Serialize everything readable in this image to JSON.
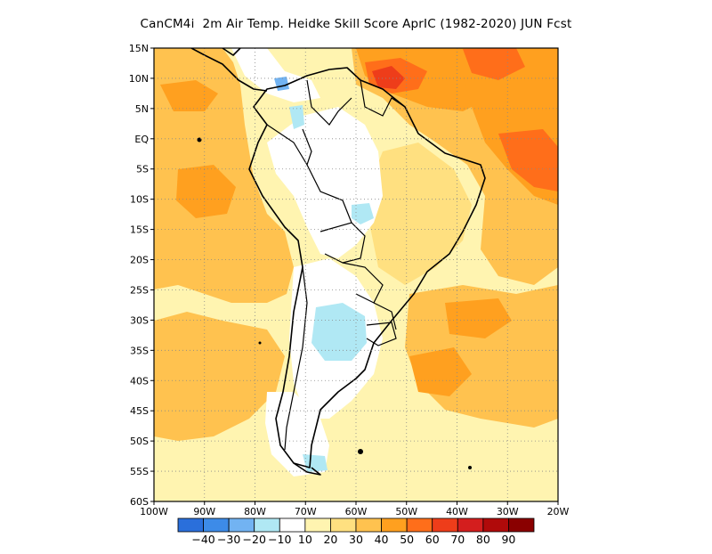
{
  "title": "CanCM4i  2m Air Temp. Heidke Skill Score AprIC (1982-2020) JUN Fcst",
  "map": {
    "lon_range": [
      -100,
      -20
    ],
    "lat_range": [
      -60,
      15
    ],
    "lat_ticks": [
      {
        "value": 15,
        "label": "15N"
      },
      {
        "value": 10,
        "label": "10N"
      },
      {
        "value": 5,
        "label": "5N"
      },
      {
        "value": 0,
        "label": "EQ"
      },
      {
        "value": -5,
        "label": "5S"
      },
      {
        "value": -10,
        "label": "10S"
      },
      {
        "value": -15,
        "label": "15S"
      },
      {
        "value": -20,
        "label": "20S"
      },
      {
        "value": -25,
        "label": "25S"
      },
      {
        "value": -30,
        "label": "30S"
      },
      {
        "value": -35,
        "label": "35S"
      },
      {
        "value": -40,
        "label": "40S"
      },
      {
        "value": -45,
        "label": "45S"
      },
      {
        "value": -50,
        "label": "50S"
      },
      {
        "value": -55,
        "label": "55S"
      },
      {
        "value": -60,
        "label": "60S"
      }
    ],
    "lon_ticks": [
      {
        "value": -100,
        "label": "100W"
      },
      {
        "value": -90,
        "label": "90W"
      },
      {
        "value": -80,
        "label": "80W"
      },
      {
        "value": -70,
        "label": "70W"
      },
      {
        "value": -60,
        "label": "60W"
      },
      {
        "value": -50,
        "label": "50W"
      },
      {
        "value": -40,
        "label": "40W"
      },
      {
        "value": -30,
        "label": "30W"
      },
      {
        "value": -20,
        "label": "20W"
      }
    ],
    "grid": true
  },
  "colorbar": {
    "colors": [
      "#2a6fdb",
      "#3d8be8",
      "#72b3f2",
      "#b0e8f4",
      "#ffffff",
      "#fff4b0",
      "#ffe080",
      "#ffc24f",
      "#ffa01f",
      "#ff6e1a",
      "#ee3d1a",
      "#d41e1e",
      "#b00a0a",
      "#8a0000"
    ],
    "labels": [
      "-40",
      "-30",
      "-20",
      "-10",
      "10",
      "20",
      "30",
      "40",
      "50",
      "60",
      "70",
      "80",
      "90"
    ]
  }
}
